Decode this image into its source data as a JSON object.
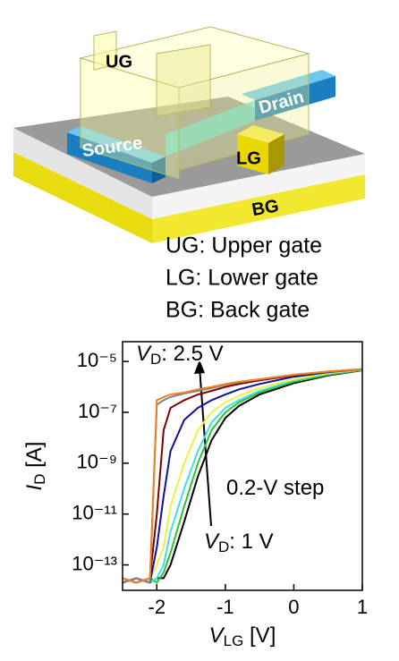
{
  "diagram_labels": [
    "UG",
    "Drain",
    "Source",
    "LG",
    "BG"
  ],
  "key_lines": [
    "UG: Upper gate",
    "LG: Lower gate",
    "BG: Back gate"
  ],
  "chart_data": {
    "type": "line",
    "log_y": true,
    "grid": false,
    "x": [
      -2.5,
      -2.3,
      -2.1,
      -2.0,
      -1.9,
      -1.8,
      -1.6,
      -1.4,
      -1.2,
      -1.0,
      -0.8,
      -0.5,
      0,
      0.5,
      1.0
    ],
    "series": [
      {
        "color": "#000000",
        "values": [
          2e-14,
          3e-14,
          2e-14,
          3e-14,
          3e-14,
          1e-13,
          5e-12,
          3e-10,
          8e-09,
          6e-08,
          1.8e-07,
          5e-07,
          1.4e-06,
          2.8e-06,
          4.5e-06
        ]
      },
      {
        "color": "#30c030",
        "values": [
          3e-14,
          2e-14,
          3e-14,
          2e-14,
          5e-14,
          3e-13,
          2e-11,
          1e-09,
          2e-08,
          1e-07,
          2.5e-07,
          6e-07,
          1.6e-06,
          3e-06,
          4.6e-06
        ]
      },
      {
        "color": "#40e0e0",
        "values": [
          2e-14,
          3e-14,
          2e-14,
          3e-14,
          1e-13,
          2e-12,
          1e-10,
          3e-09,
          4e-08,
          1.5e-07,
          3e-07,
          7e-07,
          1.8e-06,
          3.3e-06,
          4.8e-06
        ]
      },
      {
        "color": "#f0f040",
        "values": [
          3e-14,
          2e-14,
          3e-14,
          1e-13,
          5e-13,
          2e-11,
          1e-09,
          2e-08,
          1e-07,
          2.5e-07,
          4.5e-07,
          9e-07,
          2e-06,
          3.5e-06,
          5e-06
        ]
      },
      {
        "color": "#1010a0",
        "values": [
          2e-14,
          3e-14,
          2e-14,
          5e-13,
          5e-11,
          3e-09,
          5e-08,
          1.5e-07,
          3e-07,
          5e-07,
          8e-07,
          1.3e-06,
          2.5e-06,
          3.8e-06,
          5e-06
        ]
      },
      {
        "color": "#7a0000",
        "values": [
          3e-14,
          2e-14,
          3e-14,
          1e-11,
          2e-08,
          1.5e-07,
          3e-07,
          5e-07,
          7e-07,
          1e-06,
          1.3e-06,
          1.8e-06,
          2.8e-06,
          4e-06,
          5e-06
        ]
      },
      {
        "color": "#808080",
        "values": [
          2e-14,
          3e-14,
          2e-14,
          2e-07,
          3e-07,
          4e-07,
          5.5e-07,
          7e-07,
          9e-07,
          1.2e-06,
          1.5e-06,
          2e-06,
          3e-06,
          4e-06,
          5e-06
        ]
      },
      {
        "color": "#f08020",
        "values": [
          3e-14,
          2e-14,
          3e-14,
          3e-07,
          4e-07,
          5e-07,
          6e-07,
          8e-07,
          1e-06,
          1.3e-06,
          1.6e-06,
          2e-06,
          3e-06,
          4e-06,
          5e-06
        ]
      }
    ],
    "xlim": [
      -2.5,
      1
    ],
    "xticks": [
      -2,
      -1,
      0,
      1
    ],
    "ylim": [
      1e-14,
      6e-05
    ],
    "yticks": [
      {
        "value": 1e-05,
        "label": "10⁻⁵"
      },
      {
        "value": 1e-07,
        "label": "10⁻⁷"
      },
      {
        "value": 1e-09,
        "label": "10⁻⁹"
      },
      {
        "value": 1e-11,
        "label": "10⁻¹¹"
      },
      {
        "value": 1e-13,
        "label": "10⁻¹³"
      }
    ],
    "x_label": {
      "symbol": "V",
      "subscript": "LG",
      "unit": " [V]"
    },
    "y_label": {
      "symbol": "I",
      "subscript": "D",
      "unit": " [A]"
    },
    "annotations": [
      {
        "symbol": "V",
        "subscript": "D",
        "text": ": 2.5 V"
      },
      {
        "text": "0.2-V step"
      },
      {
        "symbol": "V",
        "subscript": "D",
        "text": ": 1 V"
      }
    ]
  }
}
